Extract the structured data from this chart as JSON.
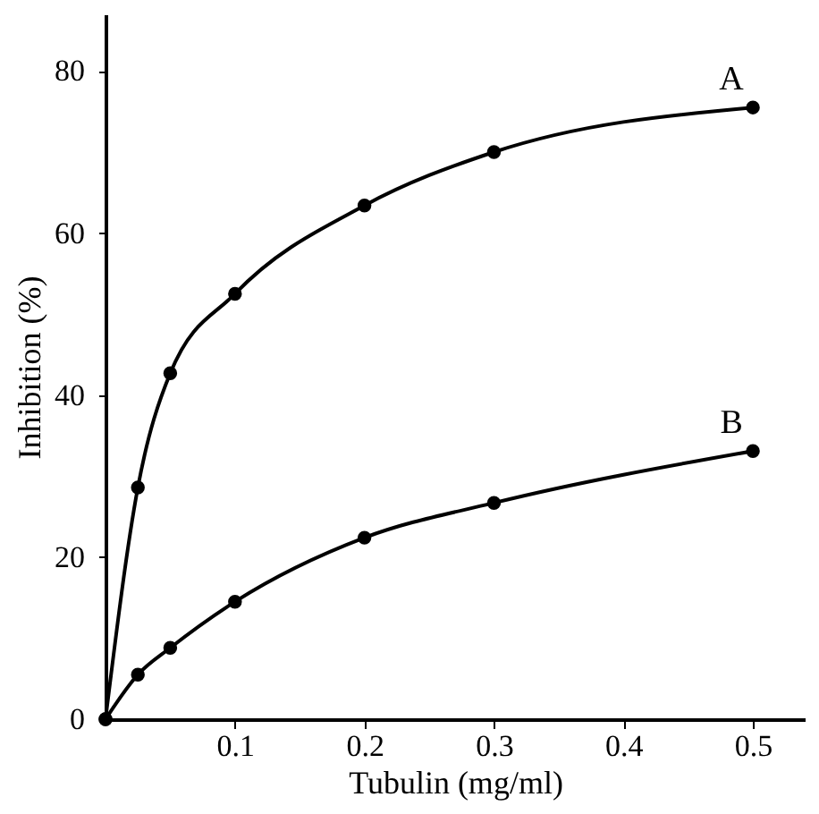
{
  "chart_data": {
    "type": "line",
    "xlabel": "Tubulin (mg/ml)",
    "ylabel": "Inhibition (%)",
    "marker": "circle",
    "x": [
      0,
      0.025,
      0.05,
      0.1,
      0.2,
      0.3,
      0.5
    ],
    "series": [
      {
        "name": "A",
        "color": "#000000",
        "values": [
          0,
          28.6,
          42.7,
          52.5,
          63.4,
          70,
          75.5
        ]
      },
      {
        "name": "B",
        "color": "#000000",
        "values": [
          0,
          5.5,
          8.8,
          14.5,
          22.4,
          26.7,
          33.1
        ]
      }
    ],
    "xlim": [
      0,
      0.54
    ],
    "xticks": [
      0.1,
      0.2,
      0.3,
      0.4,
      0.5
    ],
    "ylim": [
      0,
      87
    ],
    "yticks": [
      0,
      20,
      40,
      60,
      80
    ],
    "grid": false
  }
}
